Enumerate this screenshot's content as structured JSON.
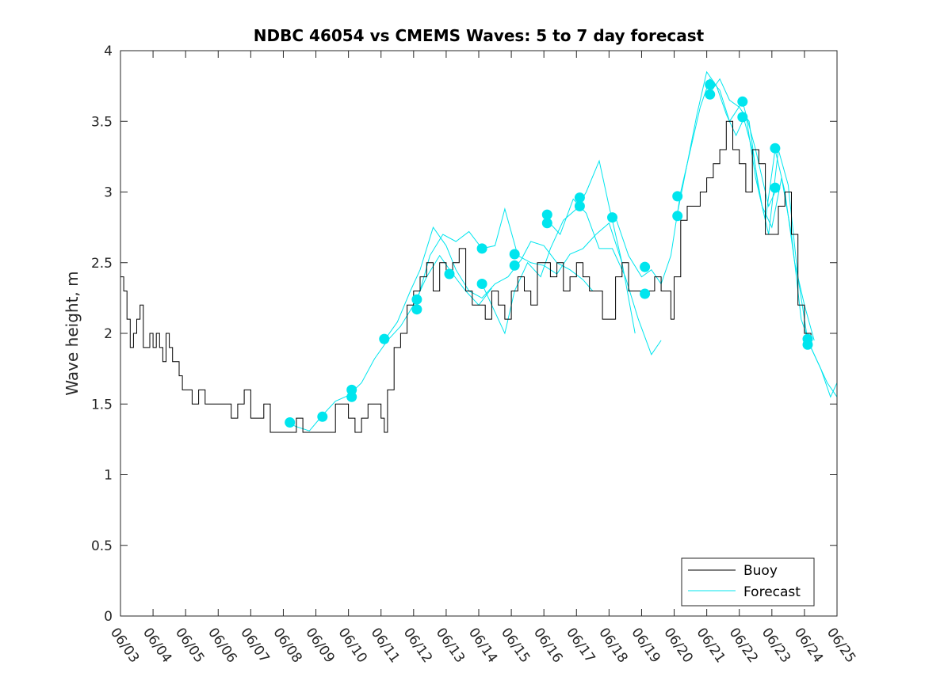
{
  "chart_data": {
    "type": "line",
    "title": "NDBC 46054 vs CMEMS Waves: 5 to 7 day forecast",
    "xlabel": "",
    "ylabel": "Wave height, m",
    "xlim": [
      "06/03",
      "06/25"
    ],
    "ylim": [
      0,
      4
    ],
    "x_ticks": [
      "06/03",
      "06/04",
      "06/05",
      "06/06",
      "06/07",
      "06/08",
      "06/09",
      "06/10",
      "06/11",
      "06/12",
      "06/13",
      "06/14",
      "06/15",
      "06/16",
      "06/17",
      "06/18",
      "06/19",
      "06/20",
      "06/21",
      "06/22",
      "06/23",
      "06/24",
      "06/25"
    ],
    "y_ticks": [
      "0",
      "0.5",
      "1",
      "1.5",
      "2",
      "2.5",
      "3",
      "3.5",
      "4"
    ],
    "grid": false,
    "legend_position": "bottom-right",
    "colors": {
      "buoy": "#000000",
      "forecast": "#00e5ee"
    },
    "series": [
      {
        "name": "Buoy",
        "style": "line",
        "x_day_of_june": [
          3.0,
          3.1,
          3.2,
          3.3,
          3.4,
          3.5,
          3.6,
          3.7,
          3.8,
          3.9,
          4.0,
          4.1,
          4.2,
          4.3,
          4.4,
          4.5,
          4.6,
          4.7,
          4.8,
          4.9,
          5.0,
          5.2,
          5.4,
          5.6,
          5.8,
          6.0,
          6.2,
          6.4,
          6.6,
          6.8,
          7.0,
          7.2,
          7.4,
          7.6,
          7.8,
          8.0,
          8.2,
          8.4,
          8.6,
          8.8,
          9.0,
          9.2,
          9.4,
          9.6,
          9.8,
          10.0,
          10.2,
          10.4,
          10.6,
          10.8,
          11.0,
          11.1,
          11.2,
          11.4,
          11.6,
          11.8,
          12.0,
          12.2,
          12.4,
          12.6,
          12.8,
          13.0,
          13.2,
          13.4,
          13.6,
          13.8,
          14.0,
          14.2,
          14.4,
          14.6,
          14.8,
          15.0,
          15.2,
          15.4,
          15.6,
          15.8,
          16.0,
          16.2,
          16.4,
          16.6,
          16.8,
          17.0,
          17.2,
          17.4,
          17.6,
          17.8,
          18.0,
          18.2,
          18.4,
          18.6,
          18.8,
          19.0,
          19.2,
          19.4,
          19.6,
          19.8,
          19.9,
          20.0,
          20.2,
          20.4,
          20.6,
          20.8,
          21.0,
          21.2,
          21.4,
          21.6,
          21.8,
          22.0,
          22.2,
          22.4,
          22.6,
          22.8,
          23.0,
          23.2,
          23.4,
          23.6,
          23.8,
          24.0,
          24.2
        ],
        "values": [
          2.4,
          2.3,
          2.1,
          1.9,
          2.0,
          2.1,
          2.2,
          1.9,
          1.9,
          2.0,
          1.9,
          2.0,
          1.9,
          1.8,
          2.0,
          1.9,
          1.8,
          1.8,
          1.7,
          1.6,
          1.6,
          1.5,
          1.6,
          1.5,
          1.5,
          1.5,
          1.5,
          1.4,
          1.5,
          1.6,
          1.4,
          1.4,
          1.5,
          1.3,
          1.3,
          1.3,
          1.3,
          1.4,
          1.3,
          1.3,
          1.3,
          1.3,
          1.3,
          1.5,
          1.5,
          1.4,
          1.3,
          1.4,
          1.5,
          1.5,
          1.4,
          1.3,
          1.6,
          1.9,
          2.0,
          2.2,
          2.3,
          2.4,
          2.5,
          2.3,
          2.5,
          2.4,
          2.5,
          2.6,
          2.3,
          2.2,
          2.2,
          2.1,
          2.3,
          2.2,
          2.1,
          2.3,
          2.4,
          2.3,
          2.2,
          2.5,
          2.5,
          2.4,
          2.5,
          2.3,
          2.4,
          2.5,
          2.4,
          2.3,
          2.3,
          2.1,
          2.1,
          2.4,
          2.5,
          2.3,
          2.3,
          2.3,
          2.3,
          2.4,
          2.3,
          2.3,
          2.1,
          2.4,
          2.8,
          2.9,
          2.9,
          3.0,
          3.1,
          3.2,
          3.3,
          3.5,
          3.3,
          3.2,
          3.0,
          3.3,
          3.2,
          2.7,
          2.7,
          2.9,
          3.0,
          2.7,
          2.2,
          2.0,
          1.9
        ]
      },
      {
        "name": "Forecast",
        "style": "line",
        "runs": [
          {
            "x_day_of_june": [
              8.1,
              8.4,
              8.8,
              9.2,
              9.6,
              10.0,
              10.4,
              10.8,
              11.2,
              11.6,
              12.0,
              12.4,
              12.8,
              13.2,
              13.6,
              14.0,
              14.4
            ],
            "values": [
              1.37,
              1.34,
              1.31,
              1.42,
              1.52,
              1.56,
              1.65,
              1.82,
              1.95,
              2.05,
              2.2,
              2.4,
              2.55,
              2.42,
              2.3,
              2.2,
              2.32
            ]
          },
          {
            "x_day_of_june": [
              11.1,
              11.5,
              11.9,
              12.2,
              12.6,
              13.0,
              13.3,
              13.7,
              14.1,
              14.5,
              14.9,
              15.3,
              15.6,
              16.0,
              16.4,
              16.8,
              17.2,
              17.5
            ],
            "values": [
              1.95,
              2.08,
              2.3,
              2.45,
              2.75,
              2.62,
              2.45,
              2.3,
              2.25,
              2.35,
              2.4,
              2.52,
              2.65,
              2.62,
              2.5,
              2.45,
              2.38,
              2.3
            ]
          },
          {
            "x_day_of_june": [
              12.1,
              12.5,
              12.9,
              13.3,
              13.7,
              14.1,
              14.5,
              14.8,
              15.2,
              15.6,
              16.0,
              16.4,
              16.8,
              17.2,
              17.6,
              18.0,
              18.4
            ],
            "values": [
              2.22,
              2.55,
              2.7,
              2.65,
              2.72,
              2.6,
              2.62,
              2.88,
              2.55,
              2.5,
              2.48,
              2.42,
              2.56,
              2.6,
              2.7,
              2.78,
              2.5
            ]
          },
          {
            "x_day_of_june": [
              14.1,
              14.4,
              14.8,
              15.1,
              15.5,
              15.9,
              16.2,
              16.6,
              17.0,
              17.3,
              17.7,
              18.0,
              18.4,
              18.8
            ],
            "values": [
              2.35,
              2.2,
              2.0,
              2.3,
              2.5,
              2.4,
              2.6,
              2.8,
              2.88,
              3.0,
              3.22,
              2.9,
              2.5,
              2.0
            ]
          },
          {
            "x_day_of_june": [
              16.1,
              16.5,
              16.9,
              17.3,
              17.7,
              18.1,
              18.5,
              18.9,
              19.3,
              19.6
            ],
            "values": [
              2.8,
              2.7,
              2.95,
              2.85,
              2.6,
              2.6,
              2.4,
              2.1,
              1.85,
              1.95
            ]
          },
          {
            "x_day_of_june": [
              18.2,
              18.6,
              19.0,
              19.3,
              19.6,
              19.9,
              20.2,
              20.5,
              20.8,
              21.1,
              21.4,
              21.7,
              22.1,
              22.5,
              22.9,
              23.2
            ],
            "values": [
              2.82,
              2.55,
              2.4,
              2.45,
              2.35,
              2.55,
              3.0,
              3.3,
              3.6,
              3.8,
              3.72,
              3.5,
              3.64,
              3.3,
              2.9,
              3.05
            ]
          },
          {
            "x_day_of_june": [
              20.1,
              20.4,
              20.7,
              21.0,
              21.3,
              21.6,
              21.9,
              22.2,
              22.5,
              22.8,
              23.1,
              23.4,
              23.7,
              24.0,
              24.3
            ],
            "values": [
              2.85,
              3.2,
              3.55,
              3.85,
              3.75,
              3.55,
              3.4,
              3.55,
              3.1,
              2.8,
              3.3,
              3.0,
              2.5,
              2.2,
              1.95
            ]
          },
          {
            "x_day_of_june": [
              21.1,
              21.4,
              21.7,
              22.0,
              22.3,
              22.6,
              22.9,
              23.2,
              23.5,
              23.8,
              24.1,
              24.4,
              24.7,
              25.0
            ],
            "values": [
              3.7,
              3.8,
              3.65,
              3.6,
              3.5,
              3.0,
              2.7,
              3.3,
              3.05,
              2.4,
              1.95,
              1.8,
              1.65,
              1.55
            ]
          },
          {
            "x_day_of_june": [
              22.1,
              22.4,
              22.7,
              23.0,
              23.3,
              23.6,
              23.9,
              24.2,
              24.5,
              24.8,
              25.0
            ],
            "values": [
              3.55,
              3.3,
              2.9,
              2.75,
              3.1,
              2.7,
              2.1,
              1.9,
              1.75,
              1.55,
              1.65
            ]
          }
        ]
      },
      {
        "name": "Forecast markers",
        "style": "markers",
        "x_day_of_june": [
          8.2,
          9.2,
          10.1,
          10.1,
          11.1,
          12.1,
          12.1,
          13.1,
          14.1,
          14.1,
          15.1,
          15.1,
          16.1,
          16.1,
          17.1,
          17.1,
          18.1,
          19.1,
          19.1,
          20.1,
          20.1,
          21.1,
          21.1,
          22.1,
          22.1,
          23.1,
          23.1,
          24.1,
          24.1
        ],
        "values": [
          1.37,
          1.41,
          1.55,
          1.6,
          1.96,
          2.17,
          2.24,
          2.42,
          2.35,
          2.6,
          2.48,
          2.56,
          2.78,
          2.84,
          2.9,
          2.96,
          2.82,
          2.28,
          2.47,
          2.83,
          2.97,
          3.69,
          3.76,
          3.53,
          3.64,
          3.03,
          3.31,
          1.92,
          1.96
        ]
      }
    ]
  }
}
